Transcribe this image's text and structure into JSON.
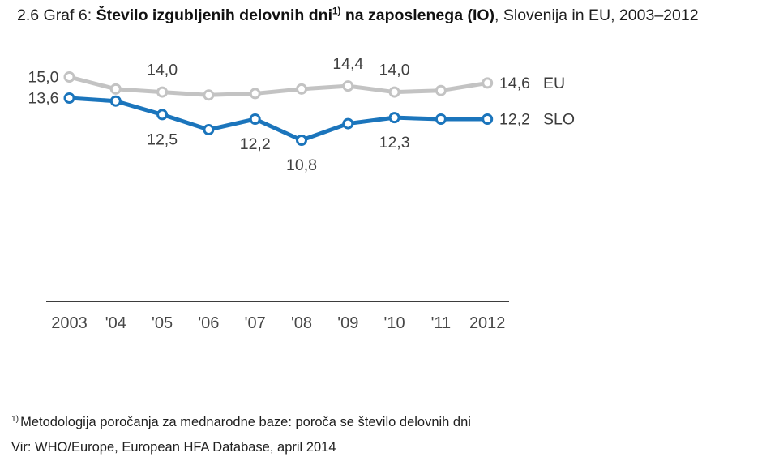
{
  "title": {
    "prefix": "2.6 Graf 6: ",
    "bold_main": "Število izgubljenih delovnih dni",
    "superscript": "1)",
    "bold_rest": " na zaposlenega (IO)",
    "suffix": ", Slovenija in EU, 2003–2012"
  },
  "chart_data": {
    "type": "line",
    "title": "Število izgubljenih delovnih dni na zaposlenega (IO), Slovenija in EU, 2003–2012",
    "x": [
      "2003",
      "'04",
      "'05",
      "'06",
      "'07",
      "'08",
      "'09",
      "'10",
      "'11",
      "2012"
    ],
    "xlabel": "",
    "ylabel": "",
    "ylim": [
      10,
      16
    ],
    "grid": false,
    "legend_position": "inline-right-of-last-point",
    "series": [
      {
        "name": "EU",
        "color": "#c3c3c3",
        "values": [
          15.0,
          14.2,
          14.0,
          13.8,
          13.9,
          14.2,
          14.4,
          14.0,
          14.1,
          14.6
        ],
        "point_labels": [
          "15,0",
          null,
          "14,0",
          null,
          null,
          null,
          "14,4",
          "14,0",
          null,
          null
        ],
        "label_positions": [
          "left",
          null,
          "above",
          null,
          null,
          null,
          "above",
          "above",
          null,
          null
        ],
        "end_label": {
          "value": "14,6",
          "name": "EU"
        }
      },
      {
        "name": "SLO",
        "color": "#1b75bc",
        "values": [
          13.6,
          13.4,
          12.5,
          11.5,
          12.2,
          10.8,
          11.9,
          12.3,
          12.2,
          12.2
        ],
        "point_labels": [
          "13,6",
          null,
          "12,5",
          null,
          "12,2",
          "10,8",
          null,
          "12,3",
          null,
          null
        ],
        "label_positions": [
          "left",
          null,
          "below",
          null,
          "below",
          "below",
          null,
          "below",
          null,
          null
        ],
        "end_label": {
          "value": "12,2",
          "name": "SLO"
        }
      }
    ]
  },
  "footnote": {
    "superscript": "1)",
    "line1": "Metodologija poročanja za mednarodne baze: poroča se število delovnih dni",
    "line2": "Vir: WHO/Europe, European HFA Database, april 2014"
  },
  "colors": {
    "eu_line": "#c3c3c3",
    "slo_line": "#1b75bc",
    "axis": "#3d3d3d",
    "label_text": "#404040"
  }
}
